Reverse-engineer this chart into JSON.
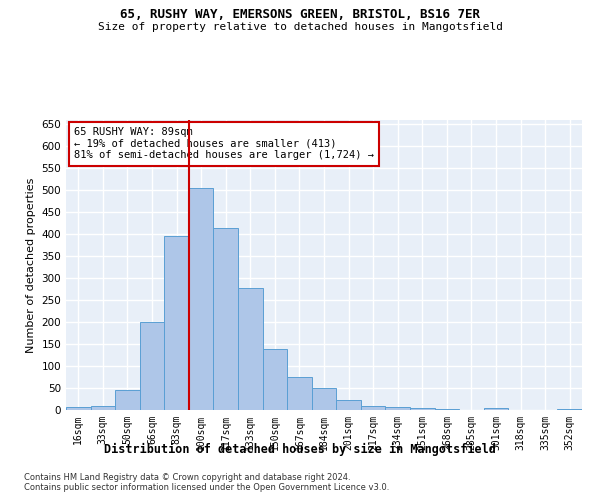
{
  "title1": "65, RUSHY WAY, EMERSONS GREEN, BRISTOL, BS16 7ER",
  "title2": "Size of property relative to detached houses in Mangotsfield",
  "xlabel": "Distribution of detached houses by size in Mangotsfield",
  "ylabel": "Number of detached properties",
  "categories": [
    "16sqm",
    "33sqm",
    "50sqm",
    "66sqm",
    "83sqm",
    "100sqm",
    "117sqm",
    "133sqm",
    "150sqm",
    "167sqm",
    "184sqm",
    "201sqm",
    "217sqm",
    "234sqm",
    "251sqm",
    "268sqm",
    "285sqm",
    "301sqm",
    "318sqm",
    "335sqm",
    "352sqm"
  ],
  "values": [
    7,
    8,
    45,
    200,
    395,
    505,
    415,
    278,
    138,
    75,
    50,
    22,
    10,
    7,
    5,
    3,
    0,
    4,
    0,
    0,
    2
  ],
  "bar_color": "#aec6e8",
  "bar_edge_color": "#5a9fd4",
  "vline_x": 4.5,
  "vline_color": "#cc0000",
  "annotation_line1": "65 RUSHY WAY: 89sqm",
  "annotation_line2": "← 19% of detached houses are smaller (413)",
  "annotation_line3": "81% of semi-detached houses are larger (1,724) →",
  "annotation_box_color": "#ffffff",
  "annotation_box_edge_color": "#cc0000",
  "ylim": [
    0,
    660
  ],
  "yticks": [
    0,
    50,
    100,
    150,
    200,
    250,
    300,
    350,
    400,
    450,
    500,
    550,
    600,
    650
  ],
  "bg_color": "#e8eff8",
  "grid_color": "#ffffff",
  "footer1": "Contains HM Land Registry data © Crown copyright and database right 2024.",
  "footer2": "Contains public sector information licensed under the Open Government Licence v3.0."
}
